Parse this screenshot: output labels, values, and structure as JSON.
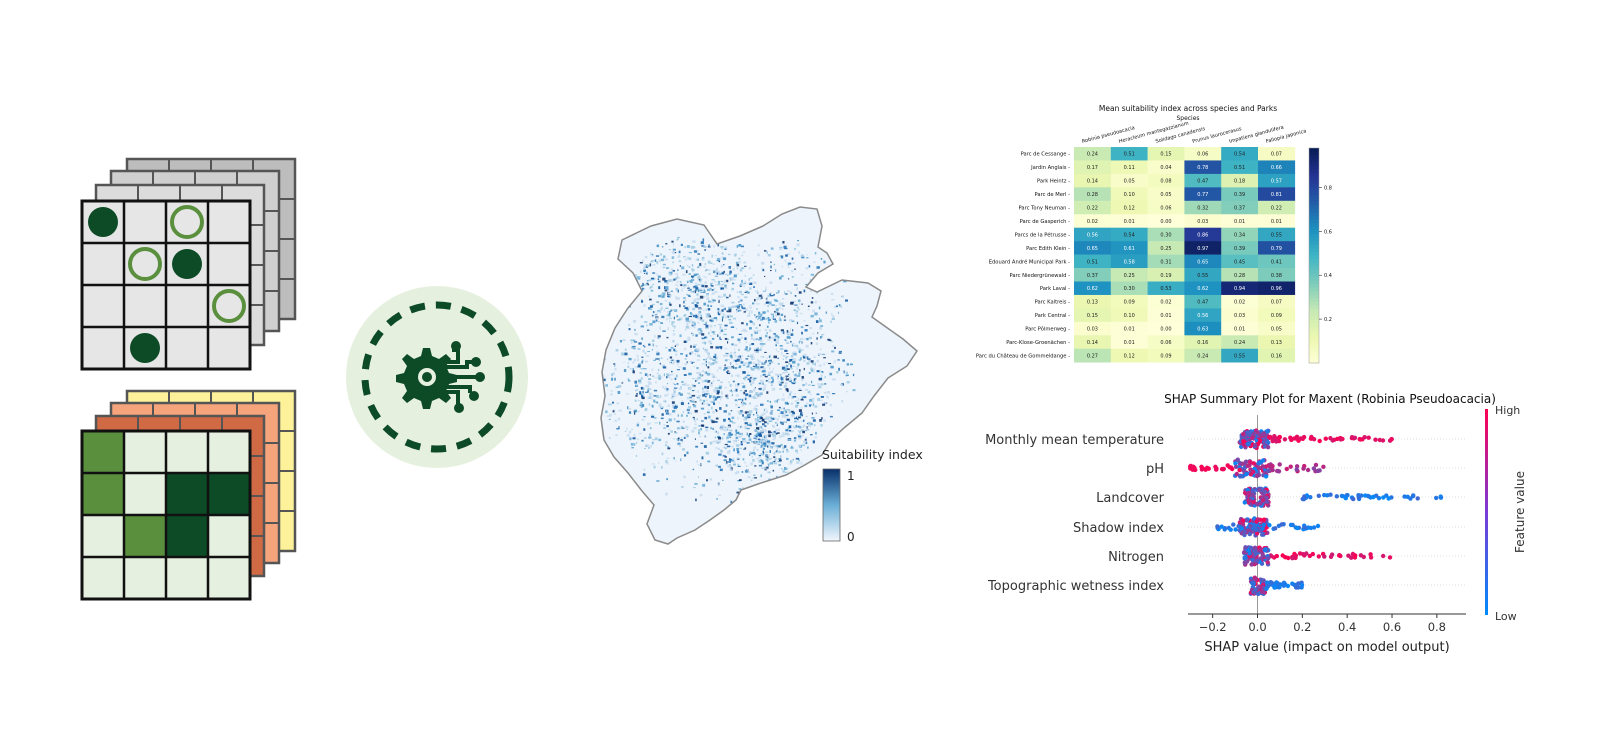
{
  "grids": {
    "occurrence_dots_filled": [
      [
        0,
        0
      ],
      [
        1,
        2
      ],
      [
        3,
        1
      ]
    ],
    "occurrence_dots_hollow": [
      [
        0,
        2
      ],
      [
        1,
        1
      ],
      [
        2,
        3
      ]
    ],
    "raster_cells": [
      [
        "mid",
        "light",
        "light",
        "light"
      ],
      [
        "mid",
        "light",
        "dark",
        "dark"
      ],
      [
        "light",
        "mid",
        "dark",
        "light"
      ],
      [
        "light",
        "light",
        "light",
        "light"
      ]
    ],
    "colors": {
      "dark_green": "#0d4a26",
      "mid_green": "#5a8f3e",
      "light_green": "#e6f0e1",
      "gray_cell": "#e6e6e6"
    }
  },
  "model_icon": {
    "icon": "gear-with-circuit-icon",
    "bg": "#e6f0df",
    "fg": "#0d4a26"
  },
  "map": {
    "legend_title": "Suitability index",
    "legend_max": "1",
    "legend_min": "0",
    "color_low": "#f1f6fc",
    "color_high": "#08306b"
  },
  "heatmap": {
    "title": "Mean suitability index across species and Parks",
    "xlabel": "Species",
    "species": [
      "Robinia pseudoacacia",
      "Heracleum mantegazzianum",
      "Solidago canadensis",
      "Prunus laurocerasus",
      "Impatiens glandulifera",
      "Fallopia japonica"
    ],
    "parks": [
      "Parc de Cessange",
      "Jardin Anglais",
      "Park Heintz",
      "Parc de Merl",
      "Parc Tony Neuman",
      "Parc de Gasperich",
      "Parcs de la Pétrusse",
      "Parc Edith Klein",
      "Edouard André Municipal Park",
      "Parc Niedergrünewald",
      "Park Laval",
      "Parc Kaltreis",
      "Park Central",
      "Parc Pôlmerweg",
      "Parc-Klose-Groenächen",
      "Parc du Château de Gommeldange"
    ],
    "values": [
      [
        "0.24",
        "0.51",
        "0.15",
        "0.06",
        "0.54",
        "0.07"
      ],
      [
        "0.17",
        "0.11",
        "0.04",
        "0.78",
        "0.51",
        "0.66"
      ],
      [
        "0.14",
        "0.05",
        "0.08",
        "0.47",
        "0.18",
        "0.57"
      ],
      [
        "0.28",
        "0.10",
        "0.05",
        "0.77",
        "0.39",
        "0.81"
      ],
      [
        "0.22",
        "0.12",
        "0.06",
        "0.32",
        "0.37",
        "0.22"
      ],
      [
        "0.02",
        "0.01",
        "0.00",
        "0.03",
        "0.01",
        "0.01"
      ],
      [
        "0.56",
        "0.54",
        "0.30",
        "0.86",
        "0.34",
        "0.55"
      ],
      [
        "0.65",
        "0.61",
        "0.25",
        "0.97",
        "0.39",
        "0.79"
      ],
      [
        "0.51",
        "0.58",
        "0.31",
        "0.65",
        "0.45",
        "0.41"
      ],
      [
        "0.37",
        "0.25",
        "0.19",
        "0.55",
        "0.28",
        "0.38"
      ],
      [
        "0.62",
        "0.30",
        "0.53",
        "0.62",
        "0.94",
        "0.96"
      ],
      [
        "0.13",
        "0.09",
        "0.02",
        "0.47",
        "0.02",
        "0.07"
      ],
      [
        "0.15",
        "0.10",
        "0.01",
        "0.56",
        "0.03",
        "0.09"
      ],
      [
        "0.03",
        "0.01",
        "0.00",
        "0.63",
        "0.01",
        "0.05"
      ],
      [
        "0.14",
        "0.01",
        "0.06",
        "0.16",
        "0.24",
        "0.13"
      ],
      [
        "0.27",
        "0.12",
        "0.09",
        "0.24",
        "0.55",
        "0.16"
      ]
    ],
    "colorbar_ticks": [
      "0.8",
      "0.6",
      "0.4",
      "0.2"
    ],
    "colormap": "YlGnBu"
  },
  "shap": {
    "title": "SHAP Summary Plot for Maxent (Robinia Pseudoacacia)",
    "features": [
      "Monthly mean temperature",
      "pH",
      "Landcover",
      "Shadow index",
      "Nitrogen",
      "Topographic wetness index"
    ],
    "xlabel": "SHAP value (impact on model output)",
    "xticks": [
      "−0.2",
      "0.0",
      "0.2",
      "0.4",
      "0.6",
      "0.8"
    ],
    "xlim": [
      -0.31,
      0.93
    ],
    "cbar_title": "Feature value",
    "cbar_high": "High",
    "cbar_low": "Low",
    "color_low": "#008afb",
    "color_high": "#ff0052"
  }
}
